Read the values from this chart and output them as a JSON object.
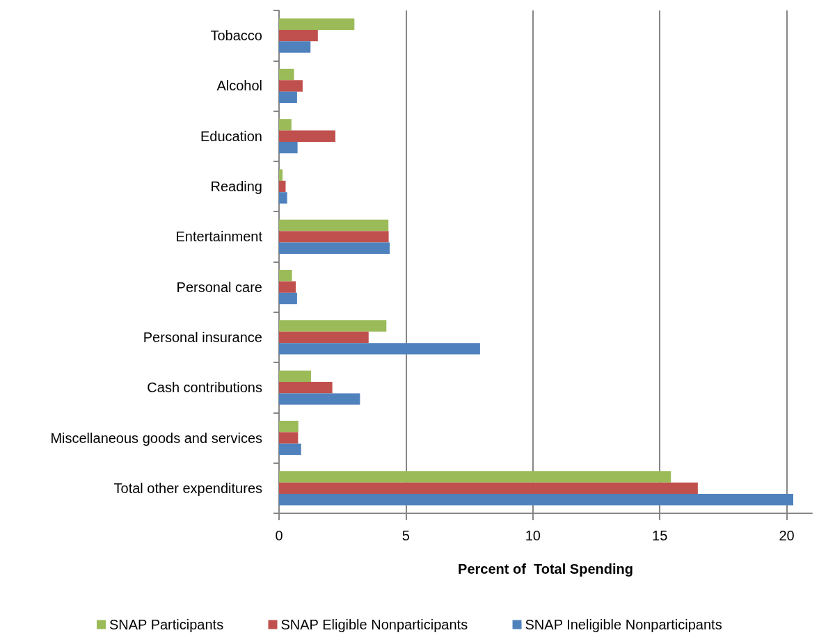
{
  "chart_data": {
    "type": "bar",
    "orientation": "horizontal",
    "xlabel": "Percent of  Total Spending",
    "categories": [
      "Tobacco",
      "Alcohol",
      "Education",
      "Reading",
      "Entertainment",
      "Personal care",
      "Personal insurance",
      "Cash contributions",
      "Miscellaneous goods and services",
      "Total other expenditures"
    ],
    "series": [
      {
        "name": "SNAP Participants",
        "color": "#9bbb59",
        "values": [
          2.97,
          0.59,
          0.49,
          0.14,
          4.31,
          0.51,
          4.23,
          1.26,
          0.76,
          15.44
        ]
      },
      {
        "name": "SNAP Eligible Nonparticipants",
        "color": "#c0504d",
        "values": [
          1.53,
          0.93,
          2.22,
          0.26,
          4.32,
          0.66,
          3.53,
          2.1,
          0.75,
          16.5
        ]
      },
      {
        "name": "SNAP Ineligible Nonparticipants",
        "color": "#4f81bd",
        "values": [
          1.24,
          0.71,
          0.73,
          0.32,
          4.36,
          0.71,
          7.92,
          3.19,
          0.87,
          20.26
        ]
      }
    ],
    "xlim": [
      0,
      21
    ],
    "xticks": [
      0,
      5,
      10,
      15,
      20
    ],
    "grid": "x",
    "legend": "bottom"
  }
}
